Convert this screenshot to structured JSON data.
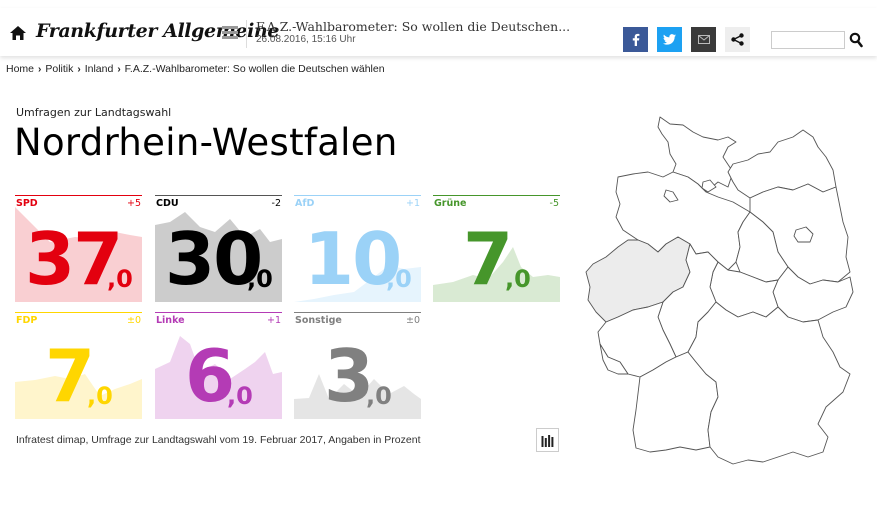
{
  "header": {
    "logo": "Frankfurter Allgemeine",
    "article_title": "F.A.Z.-Wahlbarometer: So wollen die Deutschen...",
    "article_date": "26.08.2016, 15:16 Uhr",
    "search_placeholder": "",
    "icons": [
      "home-icon",
      "menu-icon",
      "facebook-icon",
      "twitter-icon",
      "email-icon",
      "share-icon",
      "search-icon"
    ]
  },
  "breadcrumb": {
    "items": [
      "Home",
      "Politik",
      "Inland",
      "F.A.Z.-Wahlbarometer: So wollen die Deutschen wählen"
    ],
    "separator": "›"
  },
  "page": {
    "kicker": "Umfragen zur Landtagswahl",
    "title": "Nordrhein-Westfalen",
    "source": "Infratest dimap, Umfrage zur Landtagswahl vom 19. Februar 2017, Angaben in Prozent"
  },
  "parties": [
    {
      "name": "SPD",
      "int": "37",
      "dec": ",0",
      "diff": "+5",
      "color": "#e3000f",
      "fill": "#f9cfd2"
    },
    {
      "name": "CDU",
      "int": "30",
      "dec": ",0",
      "diff": "-2",
      "color": "#000000",
      "fill": "#cccccc"
    },
    {
      "name": "AfD",
      "int": "10",
      "dec": ",0",
      "diff": "+1",
      "color": "#9bd2f7",
      "fill": "#e6f4fd"
    },
    {
      "name": "Grüne",
      "int": "7",
      "dec": ",0",
      "diff": "-5",
      "color": "#46962b",
      "fill": "#d9ead3"
    },
    {
      "name": "FDP",
      "int": "7",
      "dec": ",0",
      "diff": "±0",
      "color": "#ffd600",
      "fill": "#fff5cc"
    },
    {
      "name": "Linke",
      "int": "6",
      "dec": ",0",
      "diff": "+1",
      "color": "#b43bb5",
      "fill": "#efd3ef"
    },
    {
      "name": "Sonstige",
      "int": "3",
      "dec": ",0",
      "diff": "±0",
      "color": "#808080",
      "fill": "#e5e5e5"
    }
  ],
  "chart_data": {
    "type": "bar",
    "title": "Nordrhein-Westfalen",
    "subtitle": "Umfragen zur Landtagswahl",
    "categories": [
      "SPD",
      "CDU",
      "AfD",
      "Grüne",
      "FDP",
      "Linke",
      "Sonstige"
    ],
    "values": [
      37.0,
      30.0,
      10.0,
      7.0,
      7.0,
      6.0,
      3.0
    ],
    "change": [
      5,
      -2,
      1,
      -5,
      0,
      1,
      0
    ],
    "colors": [
      "#e3000f",
      "#000000",
      "#9bd2f7",
      "#46962b",
      "#ffd600",
      "#b43bb5",
      "#808080"
    ],
    "xlabel": "",
    "ylabel": "Angaben in Prozent",
    "source": "Infratest dimap, 19. Februar 2017",
    "highlighted_region": "Nordrhein-Westfalen"
  }
}
